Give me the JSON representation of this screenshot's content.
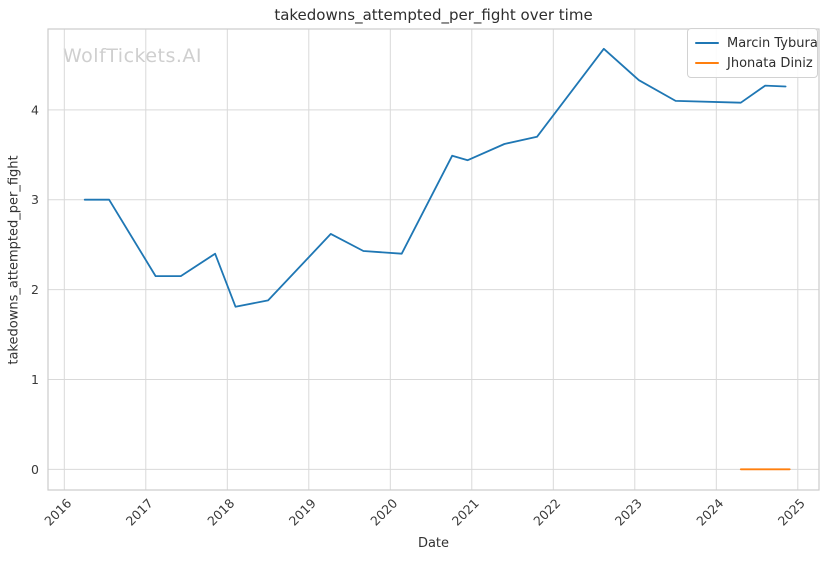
{
  "figure": {
    "watermark": "WolfTickets.AI"
  },
  "chart_data": {
    "type": "line",
    "title": "takedowns_attempted_per_fight over time",
    "xlabel": "Date",
    "ylabel": "takedowns_attempted_per_fight",
    "xlim": [
      2015.8,
      2025.26
    ],
    "ylim": [
      -0.23,
      4.9
    ],
    "x_ticks": [
      2016,
      2017,
      2018,
      2019,
      2020,
      2021,
      2022,
      2023,
      2024,
      2025
    ],
    "y_ticks": [
      0,
      1,
      2,
      3,
      4
    ],
    "grid": true,
    "legend_position": "upper right",
    "colors": {
      "grid": "#d9d9d9",
      "spine": "#cccccc",
      "tick_text": "#3a3a3a"
    },
    "series": [
      {
        "name": "Marcin Tybura",
        "color": "#1f77b4",
        "x": [
          2016.25,
          2016.55,
          2017.12,
          2017.43,
          2017.85,
          2018.1,
          2018.5,
          2019.27,
          2019.67,
          2020.14,
          2020.76,
          2020.95,
          2021.4,
          2021.8,
          2022.62,
          2023.05,
          2023.5,
          2024.3,
          2024.6,
          2024.85
        ],
        "y": [
          3.0,
          3.0,
          2.15,
          2.15,
          2.4,
          1.81,
          1.88,
          2.62,
          2.43,
          2.4,
          3.49,
          3.44,
          3.62,
          3.7,
          4.68,
          4.33,
          4.1,
          4.08,
          4.27,
          4.26
        ]
      },
      {
        "name": "Jhonata Diniz",
        "color": "#ff7f0e",
        "x": [
          2024.3,
          2024.9
        ],
        "y": [
          0.0,
          0.0
        ]
      }
    ]
  }
}
